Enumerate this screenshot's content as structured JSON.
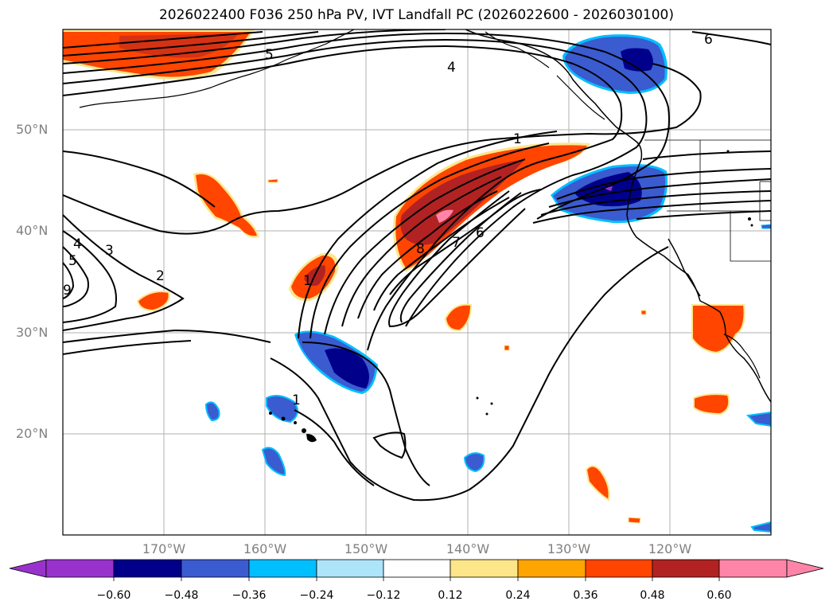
{
  "title": "2026022400 F036 250 hPa PV, IVT Landfall PC (2026022600 - 2026030100)",
  "latitude_labels": [
    "50°N",
    "40°N",
    "30°N",
    "20°N"
  ],
  "longitude_labels": [
    "170°W",
    "160°W",
    "150°W",
    "140°W",
    "130°W",
    "120°W"
  ],
  "contour_labels": [
    "1",
    "1",
    "2",
    "3",
    "4",
    "4",
    "5",
    "6",
    "6",
    "7",
    "8",
    "9",
    "1",
    "5"
  ],
  "colorbar": {
    "tick_labels": [
      "−0.60",
      "−0.48",
      "−0.36",
      "−0.24",
      "−0.12",
      "0.12",
      "0.24",
      "0.36",
      "0.48",
      "0.60"
    ],
    "colors": [
      "#9932cc",
      "#00008b",
      "#3b5bd0",
      "#00bfff",
      "#aee4fa",
      "#ffffff",
      "#fde68a",
      "#ffa500",
      "#ff4500",
      "#b22222",
      "#ff85a8"
    ]
  }
}
